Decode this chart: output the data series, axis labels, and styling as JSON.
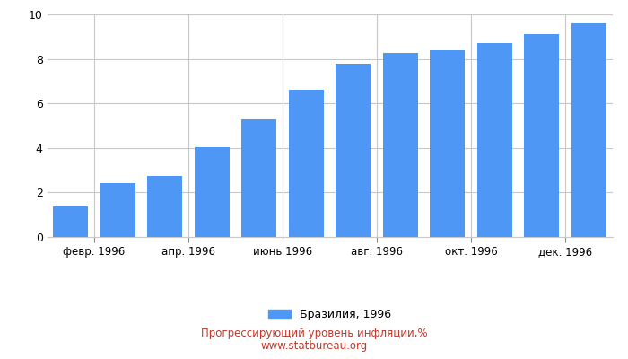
{
  "months_count": 12,
  "x_tick_labels": [
    "февр. 1996",
    "апр. 1996",
    "июнь 1996",
    "авг. 1996",
    "окт. 1996",
    "дек. 1996"
  ],
  "x_tick_positions": [
    1.5,
    3.5,
    5.5,
    7.5,
    9.5,
    11.5
  ],
  "values": [
    1.38,
    2.41,
    2.75,
    4.05,
    5.3,
    6.6,
    7.8,
    8.25,
    8.4,
    8.7,
    9.1,
    9.6
  ],
  "bar_color": "#4f97f5",
  "bar_width": 0.75,
  "ylim": [
    0,
    10
  ],
  "yticks": [
    0,
    2,
    4,
    6,
    8,
    10
  ],
  "legend_label": "Бразилия, 1996",
  "title_line1": "Прогрессирующий уровень инфляции,%",
  "title_line2": "www.statbureau.org",
  "title_color": "#c0392b",
  "background_color": "#ffffff",
  "grid_color": "#c8c8c8"
}
